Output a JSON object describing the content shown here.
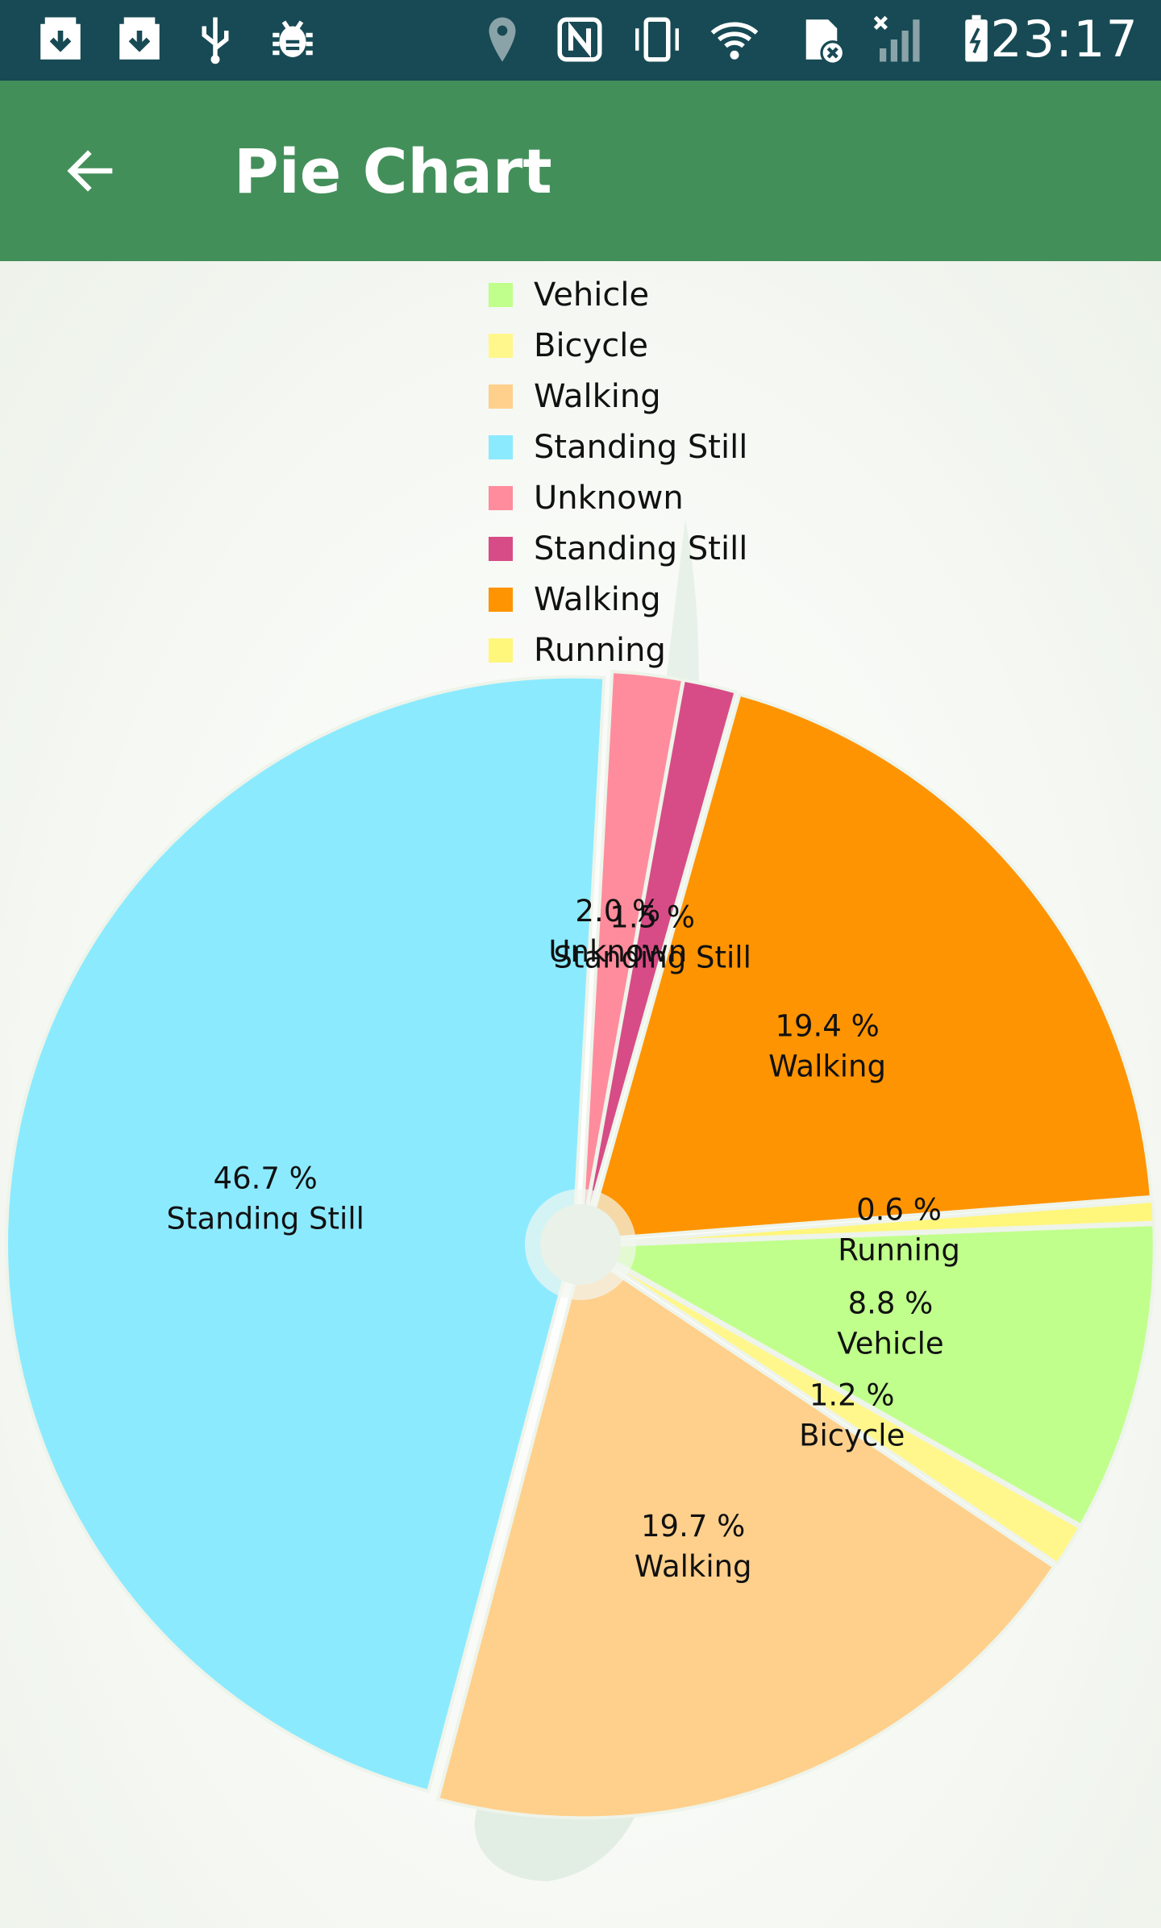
{
  "status_bar": {
    "time": "23:17",
    "icons": [
      "download-box-icon",
      "download-box-icon",
      "usb-icon",
      "android-debug-icon",
      "location-pin-icon",
      "nfc-icon",
      "vibrate-icon",
      "wifi-icon",
      "sim-error-icon",
      "signal-off-icon",
      "battery-charging-icon"
    ]
  },
  "app_bar": {
    "title": "Pie Chart",
    "back_icon": "arrow-back-icon",
    "color": "#438f5a"
  },
  "legend": {
    "items": [
      {
        "label": "Vehicle",
        "color": "#c0ff8c"
      },
      {
        "label": "Bicycle",
        "color": "#fff78c"
      },
      {
        "label": "Walking",
        "color": "#ffd08c"
      },
      {
        "label": "Standing Still",
        "color": "#8ceaff"
      },
      {
        "label": "Unknown",
        "color": "#ff8c9d"
      },
      {
        "label": "Standing Still",
        "color": "#d74c86"
      },
      {
        "label": "Walking",
        "color": "#fe9402"
      },
      {
        "label": "Running",
        "color": "#fff67c"
      }
    ]
  },
  "chart_data": {
    "type": "pie",
    "title": "",
    "center_hole": true,
    "legend_position": "top-center",
    "slices": [
      {
        "label": "Vehicle",
        "value": 8.8,
        "display": "8.8 %",
        "color": "#c0ff8c"
      },
      {
        "label": "Bicycle",
        "value": 1.2,
        "display": "1.2 %",
        "color": "#fff78c"
      },
      {
        "label": "Walking",
        "value": 19.7,
        "display": "19.7 %",
        "color": "#ffd08c"
      },
      {
        "label": "Standing Still",
        "value": 46.7,
        "display": "46.7 %",
        "color": "#8ceaff"
      },
      {
        "label": "Unknown",
        "value": 2.0,
        "display": "2.0 %",
        "color": "#ff8c9d"
      },
      {
        "label": "Standing Still",
        "value": 1.5,
        "display": "1.5 %",
        "color": "#d74c86"
      },
      {
        "label": "Walking",
        "value": 19.4,
        "display": "19.4 %",
        "color": "#fe9402"
      },
      {
        "label": "Running",
        "value": 0.6,
        "display": "0.6 %",
        "color": "#fff67c"
      }
    ]
  }
}
